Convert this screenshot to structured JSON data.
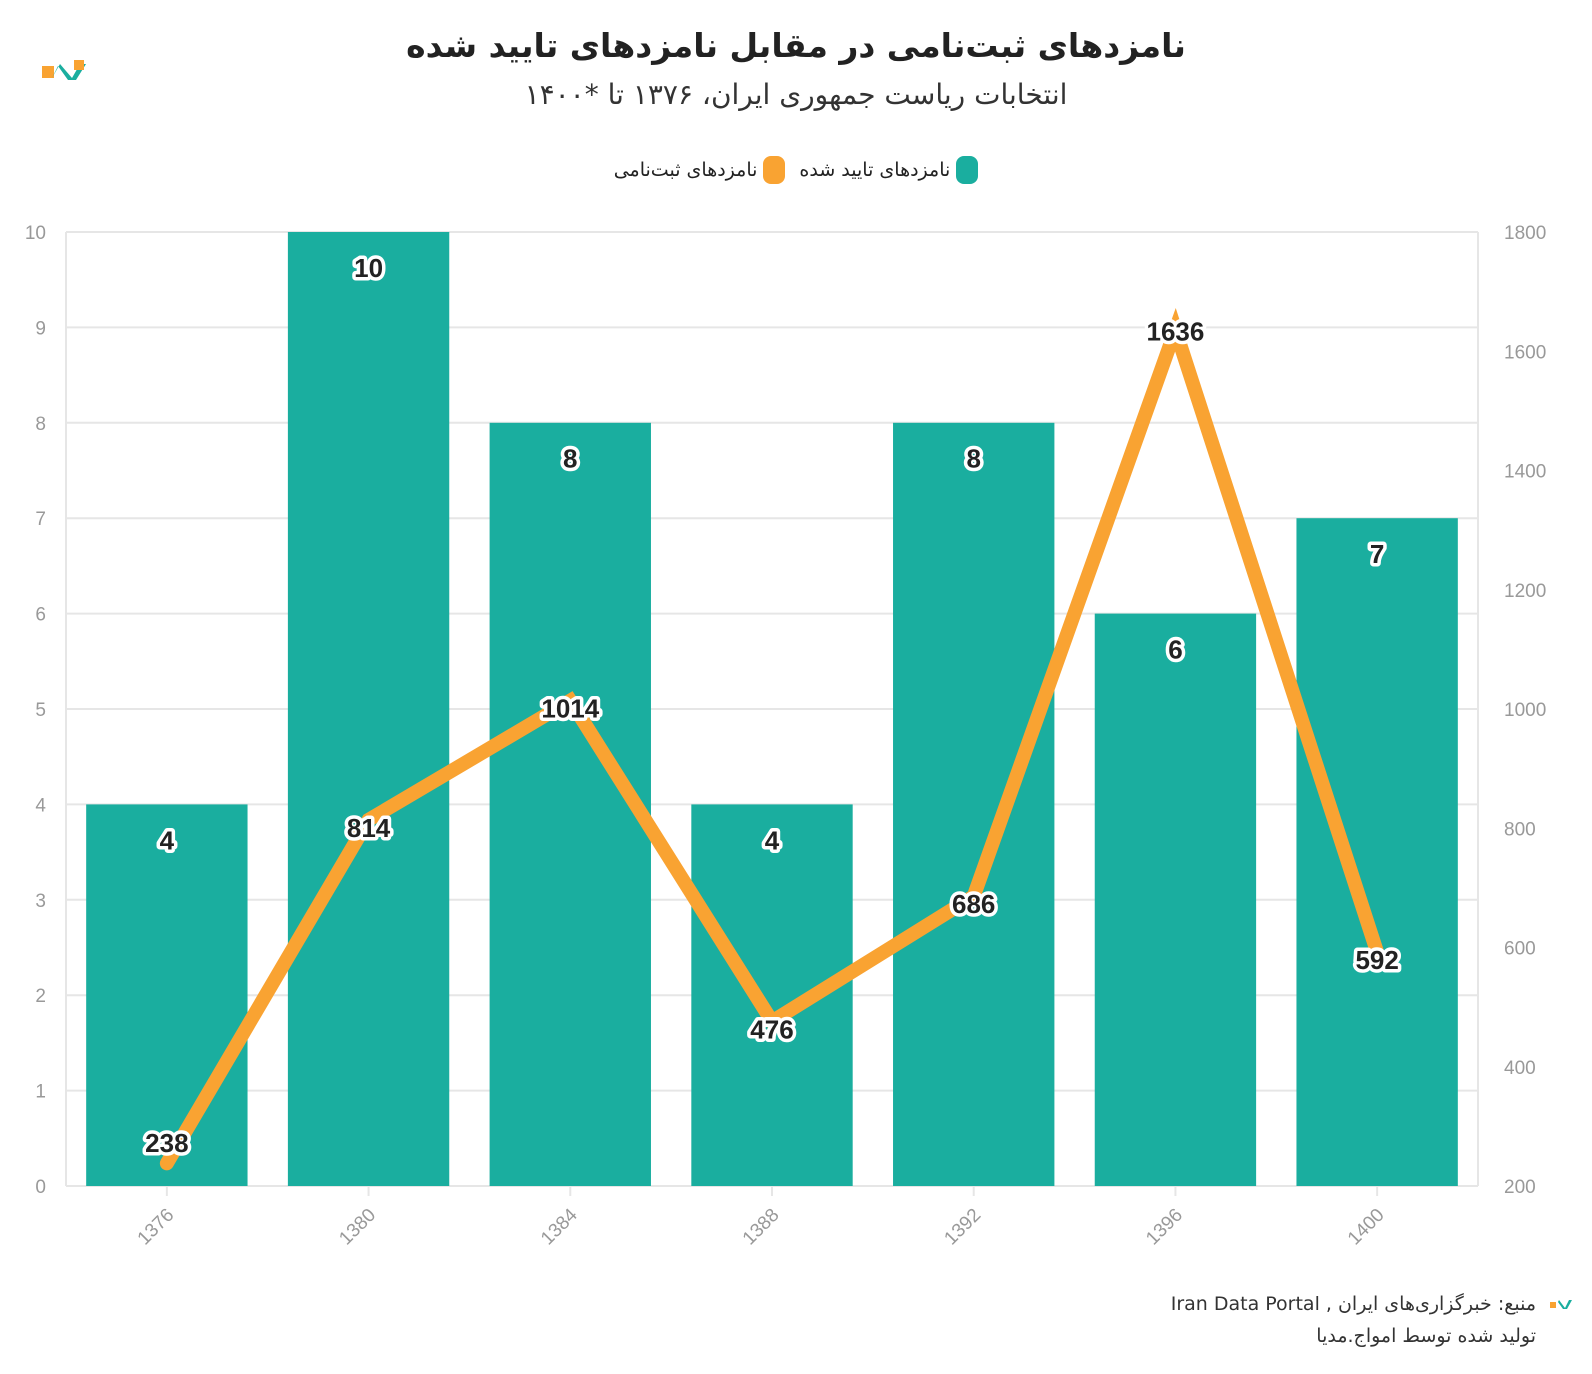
{
  "header": {
    "title": "نامزدهای ثبت‌نامی در مقابل نامزدهای تایید شده",
    "subtitle": "انتخابات ریاست جمهوری ایران، ۱۳۷۶ تا *۱۴۰۰"
  },
  "colors": {
    "bar": "#1AAE9F",
    "line": "#F9A332",
    "grid": "#e6e6e6",
    "axis_text": "#999999",
    "logo_orange": "#F9A332",
    "logo_teal": "#1AAE9F"
  },
  "chart_data": {
    "type": "bar",
    "categories": [
      "1376",
      "1380",
      "1384",
      "1388",
      "1392",
      "1396",
      "1400"
    ],
    "series": [
      {
        "name": "نامزدهای تایید شده",
        "type": "bar",
        "axis": "left",
        "values": [
          4,
          10,
          8,
          4,
          8,
          6,
          7
        ]
      },
      {
        "name": "نامزدهای ثبت‌نامی",
        "type": "line",
        "axis": "right",
        "values": [
          238,
          814,
          1014,
          476,
          686,
          1636,
          592
        ]
      }
    ],
    "y_left": {
      "min": 0,
      "max": 10,
      "ticks": [
        0,
        1,
        2,
        3,
        4,
        5,
        6,
        7,
        8,
        9,
        10
      ]
    },
    "y_right": {
      "min": 200,
      "max": 1800,
      "ticks": [
        200,
        400,
        600,
        800,
        1000,
        1200,
        1400,
        1600,
        1800
      ]
    },
    "grid": true,
    "legend_position": "top-center"
  },
  "footer": {
    "source": "منبع: خبرگزاری‌های ایران , Iran Data Portal",
    "credit": "تولید شده توسط امواج.مدیا"
  }
}
